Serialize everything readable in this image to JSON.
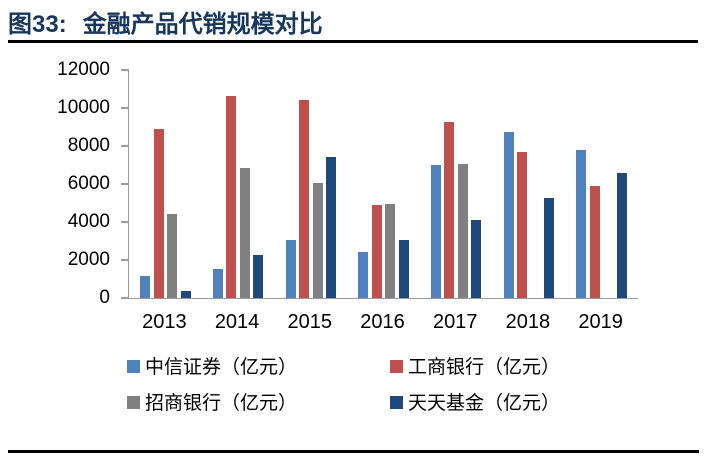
{
  "figure": {
    "label": "图33:",
    "title": "金融产品代销规模对比"
  },
  "chart_data": {
    "type": "bar",
    "title": "金融产品代销规模对比",
    "unit": "亿元",
    "categories": [
      "2013",
      "2014",
      "2015",
      "2016",
      "2017",
      "2018",
      "2019"
    ],
    "series": [
      {
        "name": "中信证券（亿元）",
        "color": "#4F81BD",
        "values": [
          1150,
          1520,
          3050,
          2420,
          7000,
          8760,
          7780
        ]
      },
      {
        "name": "工商银行（亿元）",
        "color": "#C0504D",
        "values": [
          8900,
          10650,
          10400,
          4880,
          9250,
          7690,
          5880
        ]
      },
      {
        "name": "招商银行（亿元）",
        "color": "#808080",
        "values": [
          4400,
          6850,
          6050,
          4970,
          7070,
          null,
          null
        ]
      },
      {
        "name": "天天基金（亿元）",
        "color": "#1F497D",
        "values": [
          350,
          2290,
          7430,
          3040,
          4120,
          5240,
          6570
        ]
      }
    ],
    "ylim": [
      0,
      12000
    ],
    "yticks": [
      0,
      2000,
      4000,
      6000,
      8000,
      10000,
      12000
    ],
    "grid": false,
    "legend_position": "bottom",
    "colors": {
      "title_navy": "#17375D",
      "axis_gray": "#9B9B9B",
      "rule_black": "#000000"
    }
  }
}
